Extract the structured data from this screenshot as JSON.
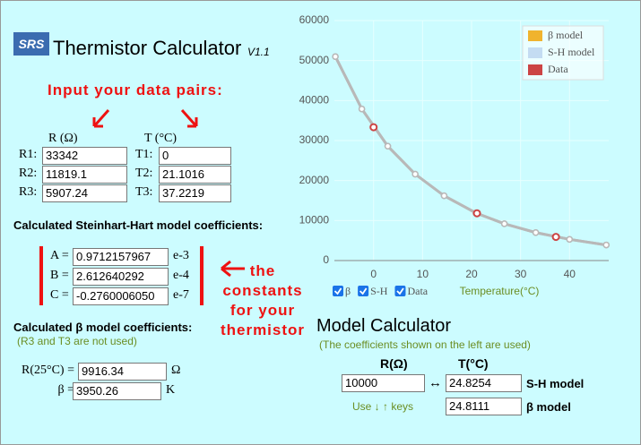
{
  "header": {
    "logo": "SRS",
    "title": "Thermistor Calculator",
    "version": "V1.1"
  },
  "annotations": {
    "input": "Input your data pairs:",
    "constants": [
      "the",
      "constants",
      "for your",
      "thermistor"
    ]
  },
  "inputs": {
    "headers": [
      "R (Ω)",
      "T (°C)"
    ],
    "rows": [
      {
        "r_label": "R1:",
        "r": "33342",
        "t_label": "T1:",
        "t": "0"
      },
      {
        "r_label": "R2:",
        "r": "11819.1",
        "t_label": "T2:",
        "t": "21.1016"
      },
      {
        "r_label": "R3:",
        "r": "5907.24",
        "t_label": "T3:",
        "t": "37.2219"
      }
    ]
  },
  "sh": {
    "title": "Calculated Steinhart-Hart model coefficients:",
    "rows": [
      {
        "label": "A =",
        "value": "0.9712157967",
        "exp": "e-3"
      },
      {
        "label": "B =",
        "value": "2.612640292",
        "exp": "e-4"
      },
      {
        "label": "C =",
        "value": "-0.2760006050",
        "exp": "e-7"
      }
    ]
  },
  "beta": {
    "title": "Calculated β model coefficients:",
    "note": "(R3 and T3 are not used)",
    "rows": [
      {
        "label": "R(25°C) =",
        "value": "9916.34",
        "unit": "Ω"
      },
      {
        "label": "β =",
        "value": "3950.26",
        "unit": "K"
      }
    ]
  },
  "model_calculator": {
    "title": "Model Calculator",
    "note": "(The coefficients shown on the left are used)",
    "col_headers": [
      "R(Ω)",
      "T(°C)"
    ],
    "r_input": "10000",
    "arrow": "↔",
    "sh_value": "24.8254",
    "sh_label": "S-H model",
    "beta_value": "24.8111",
    "beta_label": "β model",
    "hint": "Use ↓ ↑ keys"
  },
  "chart_data": {
    "type": "line",
    "x_label": "Temperature(°C)",
    "xlim": [
      -8,
      48
    ],
    "xticks": [
      0,
      10,
      20,
      30,
      40
    ],
    "ylim": [
      0,
      60000
    ],
    "yticks": [
      0,
      10000,
      20000,
      30000,
      40000,
      50000,
      60000
    ],
    "grid": true,
    "legend": "top-right",
    "line_color": "#b8b8b8",
    "toggles": [
      "β",
      "S-H",
      "Data"
    ],
    "series": [
      {
        "name": "β model",
        "color": "#f0b32e",
        "x": [
          -7.8,
          -2.4,
          2.9,
          8.5,
          14.4,
          20.9,
          26.7,
          33.1,
          40,
          47.5
        ],
        "values": [
          51000,
          37900,
          28600,
          21600,
          16200,
          11900,
          9200,
          7000,
          5300,
          3900
        ]
      },
      {
        "name": "S-H model",
        "color": "#c4dcf2",
        "x": [
          -7.8,
          -2.4,
          2.9,
          8.5,
          14.4,
          20.9,
          26.7,
          33.1,
          40,
          47.5
        ],
        "values": [
          51000,
          37900,
          28600,
          21600,
          16200,
          11900,
          9200,
          7000,
          5300,
          3900
        ]
      },
      {
        "name": "Data",
        "color": "#cc4444",
        "x": [
          0,
          21.1016,
          37.2219
        ],
        "values": [
          33342,
          11819.1,
          5907.24
        ]
      }
    ]
  }
}
